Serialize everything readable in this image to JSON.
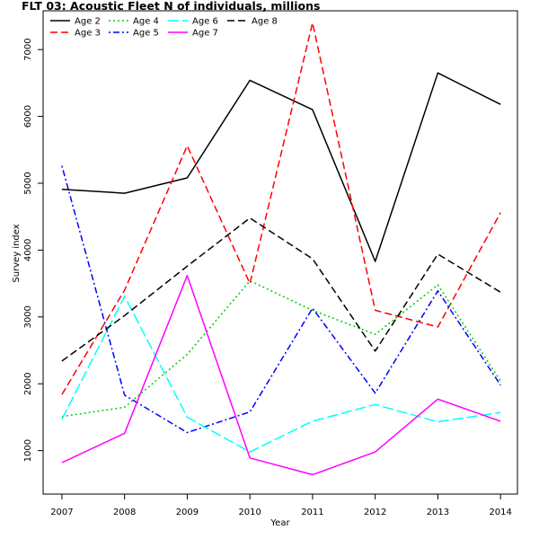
{
  "chart_data": {
    "type": "line",
    "title": "FLT 03: Acoustic Fleet   N of individuals, millions",
    "xlabel": "Year",
    "ylabel": "Survey index",
    "x": [
      2007,
      2008,
      2009,
      2010,
      2011,
      2012,
      2013,
      2014
    ],
    "xlim": [
      2006.7,
      2014.27
    ],
    "ylim": [
      350,
      7580
    ],
    "y_ticks": [
      1000,
      2000,
      3000,
      4000,
      5000,
      6000,
      7000
    ],
    "legend_position": "top-left",
    "grid": false,
    "series": [
      {
        "name": "Age 2",
        "color": "#000000",
        "dash": "solid",
        "values": [
          4910,
          4850,
          5080,
          6540,
          6100,
          3830,
          6650,
          6180
        ]
      },
      {
        "name": "Age 3",
        "color": "#ff0000",
        "dash": "dashed",
        "values": [
          1840,
          3400,
          5560,
          3500,
          7400,
          3100,
          2850,
          4560
        ]
      },
      {
        "name": "Age 4",
        "color": "#00cd00",
        "dash": "dotted",
        "values": [
          1510,
          1650,
          2440,
          3540,
          3100,
          2740,
          3480,
          2040
        ]
      },
      {
        "name": "Age 5",
        "color": "#0000ff",
        "dash": "dotdash",
        "values": [
          5260,
          1830,
          1270,
          1580,
          3130,
          1860,
          3390,
          1980
        ]
      },
      {
        "name": "Age 6",
        "color": "#00ffff",
        "dash": "longdash",
        "values": [
          1470,
          3310,
          1500,
          980,
          1440,
          1690,
          1430,
          1570
        ]
      },
      {
        "name": "Age 7",
        "color": "#ff00ff",
        "dash": "solid",
        "values": [
          820,
          1260,
          3620,
          890,
          640,
          980,
          1770,
          1440
        ]
      },
      {
        "name": "Age 8",
        "color": "#000000",
        "dash": "dashed",
        "values": [
          2340,
          3020,
          3760,
          4480,
          3870,
          2490,
          3940,
          3370
        ]
      }
    ]
  }
}
